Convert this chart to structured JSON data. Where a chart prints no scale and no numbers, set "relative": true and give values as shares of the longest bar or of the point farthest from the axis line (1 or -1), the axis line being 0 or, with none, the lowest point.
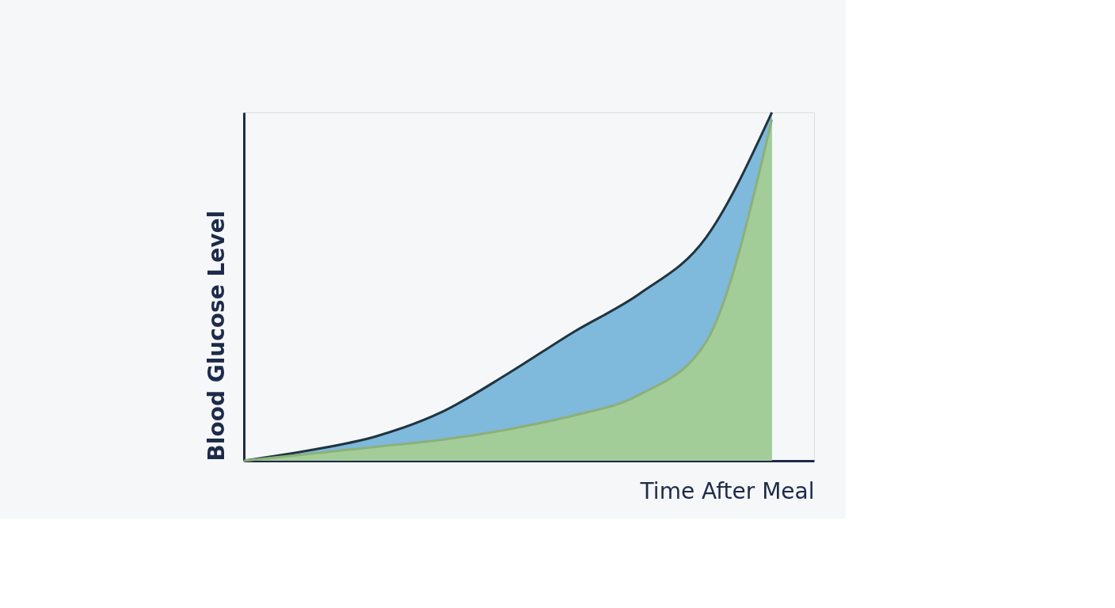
{
  "chart_data": {
    "type": "area",
    "relative": true,
    "xlabel": "Time After Meal",
    "ylabel": "Blood Glucose Level",
    "categories": [
      null,
      null,
      null,
      null,
      null,
      null,
      null,
      null,
      null
    ],
    "series": [
      {
        "color": "#6aaed6",
        "values": [
          0,
          0.03,
          0.07,
          0.14,
          0.25,
          0.37,
          0.48,
          0.64,
          1.0
        ]
      },
      {
        "color": "#a8d08d",
        "values": [
          0,
          0.02,
          0.04,
          0.06,
          0.09,
          0.13,
          0.19,
          0.34,
          0.98
        ]
      }
    ],
    "grid": false,
    "tick_labels": false
  }
}
